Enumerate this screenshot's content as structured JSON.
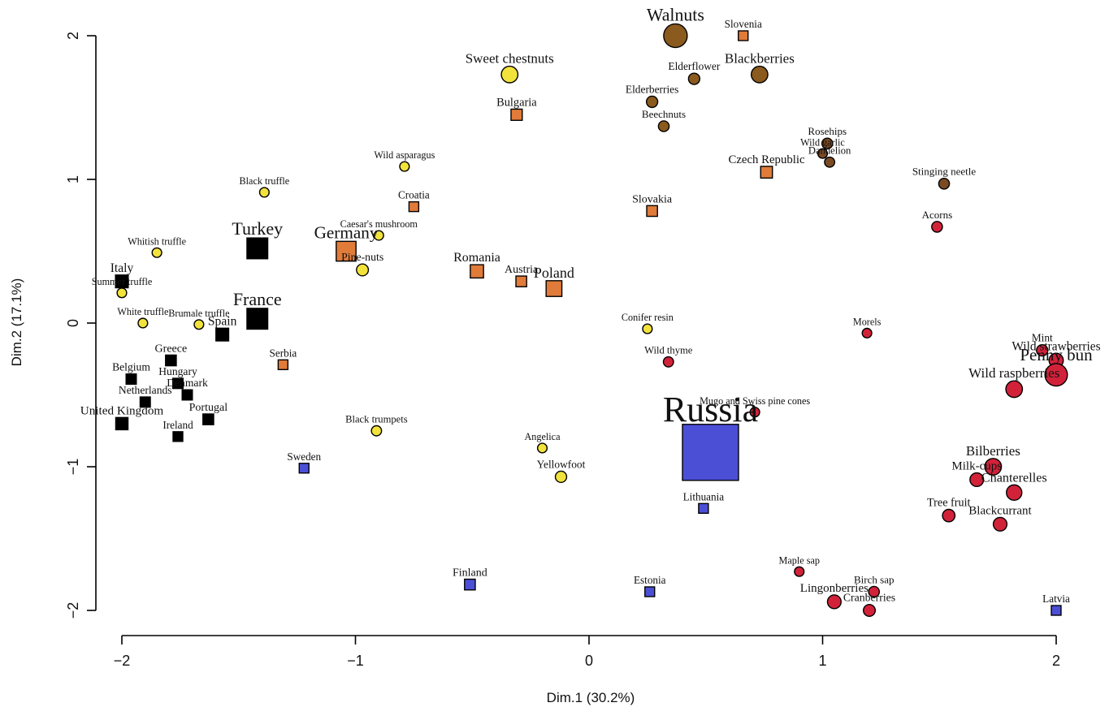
{
  "chart_data": {
    "type": "scatter",
    "title": "",
    "xlabel": "Dim.1 (30.2%)",
    "ylabel": "Dim.2 (17.1%)",
    "xlim": [
      -2,
      2
    ],
    "ylim": [
      -2,
      2
    ],
    "x_ticks": [
      -2,
      -1,
      0,
      1,
      2
    ],
    "y_ticks": [
      -2,
      -1,
      0,
      1,
      2
    ],
    "grid": false,
    "legend": "none",
    "colors": {
      "west_europe": "#000000",
      "central_europe": "#E07B39",
      "north_east_europe": "#4B4FD6",
      "truffles_nuts": "#F2E23C",
      "nuts_herbs": "#8B5A1E",
      "herbs_saps": "#7A4A22",
      "berries": "#D2223A"
    },
    "countries": [
      {
        "label": "Turkey",
        "x": -1.42,
        "y": 0.52,
        "size": 3,
        "color": "west_europe"
      },
      {
        "label": "France",
        "x": -1.42,
        "y": 0.03,
        "size": 3,
        "color": "west_europe"
      },
      {
        "label": "Italy",
        "x": -2.0,
        "y": 0.29,
        "size": 1.4,
        "color": "west_europe"
      },
      {
        "label": "Spain",
        "x": -1.57,
        "y": -0.08,
        "size": 1.4,
        "color": "west_europe"
      },
      {
        "label": "Greece",
        "x": -1.79,
        "y": -0.26,
        "size": 1,
        "color": "west_europe"
      },
      {
        "label": "Belgium",
        "x": -1.96,
        "y": -0.39,
        "size": 0.9,
        "color": "west_europe"
      },
      {
        "label": "Hungary",
        "x": -1.76,
        "y": -0.42,
        "size": 0.9,
        "color": "west_europe"
      },
      {
        "label": "Denmark",
        "x": -1.72,
        "y": -0.5,
        "size": 0.9,
        "color": "west_europe"
      },
      {
        "label": "Netherlands",
        "x": -1.9,
        "y": -0.55,
        "size": 0.9,
        "color": "west_europe"
      },
      {
        "label": "Portugal",
        "x": -1.63,
        "y": -0.67,
        "size": 1,
        "color": "west_europe"
      },
      {
        "label": "United Kingdom",
        "x": -2.0,
        "y": -0.7,
        "size": 1.3,
        "color": "west_europe"
      },
      {
        "label": "Ireland",
        "x": -1.76,
        "y": -0.79,
        "size": 0.8,
        "color": "west_europe"
      },
      {
        "label": "Germany",
        "x": -1.04,
        "y": 0.5,
        "size": 2.8,
        "color": "central_europe"
      },
      {
        "label": "Romania",
        "x": -0.48,
        "y": 0.36,
        "size": 1.5,
        "color": "central_europe"
      },
      {
        "label": "Austria",
        "x": -0.29,
        "y": 0.29,
        "size": 1,
        "color": "central_europe"
      },
      {
        "label": "Poland",
        "x": -0.15,
        "y": 0.24,
        "size": 2,
        "color": "central_europe"
      },
      {
        "label": "Croatia",
        "x": -0.75,
        "y": 0.81,
        "size": 0.8,
        "color": "central_europe"
      },
      {
        "label": "Bulgaria",
        "x": -0.31,
        "y": 1.45,
        "size": 1.1,
        "color": "central_europe"
      },
      {
        "label": "Slovenia",
        "x": 0.66,
        "y": 2.0,
        "size": 0.8,
        "color": "central_europe"
      },
      {
        "label": "Czech Republic",
        "x": 0.76,
        "y": 1.05,
        "size": 1.2,
        "color": "central_europe"
      },
      {
        "label": "Slovakia",
        "x": 0.27,
        "y": 0.78,
        "size": 1,
        "color": "central_europe"
      },
      {
        "label": "Serbia",
        "x": -1.31,
        "y": -0.29,
        "size": 0.8,
        "color": "central_europe"
      },
      {
        "label": "Russia",
        "x": 0.52,
        "y": -0.9,
        "size": 10,
        "color": "north_east_europe"
      },
      {
        "label": "Sweden",
        "x": -1.22,
        "y": -1.01,
        "size": 0.8,
        "color": "north_east_europe"
      },
      {
        "label": "Lithuania",
        "x": 0.49,
        "y": -1.29,
        "size": 0.8,
        "color": "north_east_europe"
      },
      {
        "label": "Finland",
        "x": -0.51,
        "y": -1.82,
        "size": 1,
        "color": "north_east_europe"
      },
      {
        "label": "Estonia",
        "x": 0.26,
        "y": -1.87,
        "size": 0.8,
        "color": "north_east_europe"
      },
      {
        "label": "Latvia",
        "x": 2.0,
        "y": -2.0,
        "size": 0.8,
        "color": "north_east_europe"
      }
    ],
    "products": [
      {
        "label": "Walnuts",
        "x": 0.37,
        "y": 2.0,
        "size": 3.2,
        "color": "nuts_herbs"
      },
      {
        "label": "Sweet chestnuts",
        "x": -0.34,
        "y": 1.73,
        "size": 2,
        "color": "truffles_nuts"
      },
      {
        "label": "Blackberries",
        "x": 0.73,
        "y": 1.73,
        "size": 2,
        "color": "nuts_herbs"
      },
      {
        "label": "Elderflower",
        "x": 0.45,
        "y": 1.7,
        "size": 1.1,
        "color": "nuts_herbs"
      },
      {
        "label": "Elderberries",
        "x": 0.27,
        "y": 1.54,
        "size": 1.1,
        "color": "nuts_herbs"
      },
      {
        "label": "Beechnuts",
        "x": 0.32,
        "y": 1.37,
        "size": 1,
        "color": "nuts_herbs"
      },
      {
        "label": "Rosehips",
        "x": 1.02,
        "y": 1.25,
        "size": 1,
        "color": "herbs_saps"
      },
      {
        "label": "Wild garlic",
        "x": 1.0,
        "y": 1.18,
        "size": 0.8,
        "color": "herbs_saps"
      },
      {
        "label": "Dandelion",
        "x": 1.03,
        "y": 1.12,
        "size": 0.9,
        "color": "herbs_saps"
      },
      {
        "label": "Stinging neetle",
        "x": 1.52,
        "y": 0.97,
        "size": 1,
        "color": "herbs_saps"
      },
      {
        "label": "Wild asparagus",
        "x": -0.79,
        "y": 1.09,
        "size": 0.8,
        "color": "truffles_nuts"
      },
      {
        "label": "Black truffle",
        "x": -1.39,
        "y": 0.91,
        "size": 0.8,
        "color": "truffles_nuts"
      },
      {
        "label": "Caesar's mushroom",
        "x": -0.9,
        "y": 0.61,
        "size": 0.8,
        "color": "truffles_nuts"
      },
      {
        "label": "Whitish truffle",
        "x": -1.85,
        "y": 0.49,
        "size": 0.8,
        "color": "truffles_nuts"
      },
      {
        "label": "Pine-nuts",
        "x": -0.97,
        "y": 0.37,
        "size": 1.2,
        "color": "truffles_nuts"
      },
      {
        "label": "Summer truffle",
        "x": -2.0,
        "y": 0.21,
        "size": 0.8,
        "color": "truffles_nuts"
      },
      {
        "label": "White truffle",
        "x": -1.91,
        "y": 0.0,
        "size": 0.8,
        "color": "truffles_nuts"
      },
      {
        "label": "Brumale truffle",
        "x": -1.67,
        "y": -0.01,
        "size": 0.8,
        "color": "truffles_nuts"
      },
      {
        "label": "Black trumpets",
        "x": -0.91,
        "y": -0.75,
        "size": 0.9,
        "color": "truffles_nuts"
      },
      {
        "label": "Angelica",
        "x": -0.2,
        "y": -0.87,
        "size": 0.8,
        "color": "truffles_nuts"
      },
      {
        "label": "Yellowfoot",
        "x": -0.12,
        "y": -1.07,
        "size": 1.1,
        "color": "truffles_nuts"
      },
      {
        "label": "Conifer resin",
        "x": 0.25,
        "y": -0.04,
        "size": 0.8,
        "color": "truffles_nuts"
      },
      {
        "label": "Acorns",
        "x": 1.49,
        "y": 0.67,
        "size": 1,
        "color": "berries"
      },
      {
        "label": "Morels",
        "x": 1.19,
        "y": -0.07,
        "size": 0.8,
        "color": "berries"
      },
      {
        "label": "Wild thyme",
        "x": 0.34,
        "y": -0.27,
        "size": 0.9,
        "color": "berries"
      },
      {
        "label": "Mugo and Swiss pine cones",
        "x": 0.71,
        "y": -0.62,
        "size": 0.8,
        "color": "berries"
      },
      {
        "label": "Mint",
        "x": 1.94,
        "y": -0.19,
        "size": 1.1,
        "color": "berries"
      },
      {
        "label": "Wild strawberries",
        "x": 2.0,
        "y": -0.26,
        "size": 1.6,
        "color": "berries"
      },
      {
        "label": "Penny bun",
        "x": 2.0,
        "y": -0.36,
        "size": 3,
        "color": "berries"
      },
      {
        "label": "Wild raspberries",
        "x": 1.82,
        "y": -0.46,
        "size": 2,
        "color": "berries"
      },
      {
        "label": "Bilberries",
        "x": 1.73,
        "y": -1.0,
        "size": 2,
        "color": "berries"
      },
      {
        "label": "Milk-cups",
        "x": 1.66,
        "y": -1.09,
        "size": 1.5,
        "color": "berries"
      },
      {
        "label": "Chanterelles",
        "x": 1.82,
        "y": -1.18,
        "size": 1.8,
        "color": "berries"
      },
      {
        "label": "Tree fruit",
        "x": 1.54,
        "y": -1.34,
        "size": 1.3,
        "color": "berries"
      },
      {
        "label": "Blackcurrant",
        "x": 1.76,
        "y": -1.4,
        "size": 1.5,
        "color": "berries"
      },
      {
        "label": "Maple sap",
        "x": 0.9,
        "y": -1.73,
        "size": 0.8,
        "color": "berries"
      },
      {
        "label": "Birch sap",
        "x": 1.22,
        "y": -1.87,
        "size": 1,
        "color": "berries"
      },
      {
        "label": "Lingonberries",
        "x": 1.05,
        "y": -1.94,
        "size": 1.5,
        "color": "berries"
      },
      {
        "label": "Cranberries",
        "x": 1.2,
        "y": -2.0,
        "size": 1.2,
        "color": "berries"
      }
    ]
  }
}
